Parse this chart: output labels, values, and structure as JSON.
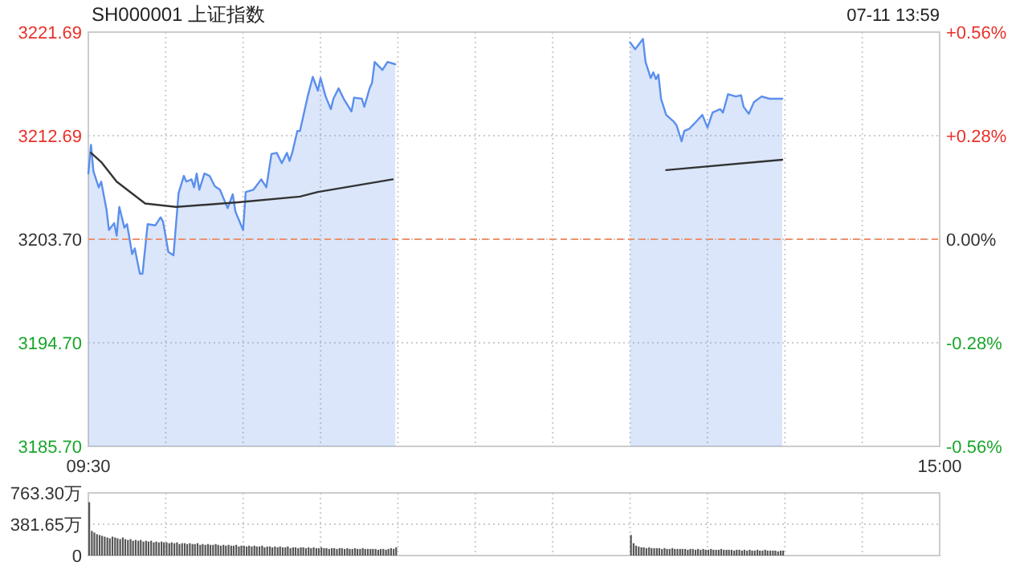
{
  "chart_data": [
    {
      "type": "line",
      "title": "SH000001 上证指数",
      "annotations": [
        "07-11 13:59"
      ],
      "grid": true,
      "xlim": [
        9.5,
        15
      ],
      "xticks": [
        {
          "value": 9.5,
          "label": "09:30"
        },
        {
          "value": 10,
          "label": null
        },
        {
          "value": 10.5,
          "label": null
        },
        {
          "value": 11,
          "label": null
        },
        {
          "value": 11.5,
          "label": null
        },
        {
          "value": 12,
          "label": null
        },
        {
          "value": 12.5,
          "label": null
        },
        {
          "value": 13,
          "label": null
        },
        {
          "value": 13.5,
          "label": null
        },
        {
          "value": 14,
          "label": null
        },
        {
          "value": 14.5,
          "label": null
        },
        {
          "value": 15,
          "label": "15:00"
        }
      ],
      "ylim": [
        3185.7,
        3221.69
      ],
      "yticks": [
        {
          "value": 3185.7,
          "label": "3185.70"
        },
        {
          "value": 3194.7,
          "label": "3194.70"
        },
        {
          "value": 3203.7,
          "label": "3203.70"
        },
        {
          "value": 3212.69,
          "label": "3212.69"
        },
        {
          "value": 3221.69,
          "label": "3221.69"
        }
      ],
      "y2lim": [
        -0.56,
        0.56
      ],
      "y2ticks": [
        {
          "value": -0.56,
          "label": "-0.56%"
        },
        {
          "value": -0.28,
          "label": "-0.28%"
        },
        {
          "value": 0,
          "label": "0.00%"
        },
        {
          "value": 0.28,
          "label": "+0.28%"
        },
        {
          "value": 0.56,
          "label": "+0.56%"
        }
      ],
      "ref_lines": [
        {
          "axis": "y",
          "value": 3203.7,
          "color": "#f0906a",
          "line_style": "dashed"
        }
      ],
      "series": [
        {
          "type": "area",
          "color": "#5b8fec",
          "x": [
            9.5,
            9.517,
            9.533,
            9.567,
            9.583,
            9.617,
            9.633,
            9.667,
            9.683,
            9.7,
            9.733,
            9.75,
            9.783,
            9.8,
            9.833,
            9.85,
            9.883,
            9.933,
            9.967,
            9.983,
            10.017,
            10.05,
            10.083,
            10.117,
            10.133,
            10.167,
            10.183,
            10.2,
            10.217,
            10.25,
            10.283,
            10.317,
            10.35,
            10.4,
            10.433,
            10.45,
            10.5,
            10.517,
            10.567,
            10.617,
            10.65,
            10.683,
            10.717,
            10.75,
            10.783,
            10.8,
            10.817,
            10.85,
            10.867,
            10.917,
            10.95,
            10.983,
            11,
            11.033,
            11.067,
            11.083,
            11.117,
            11.15,
            11.2,
            11.217,
            11.267,
            11.283,
            11.317,
            11.333,
            11.35,
            11.4,
            11.433,
            11.483,
            12.25,
            13,
            13.033,
            13.05,
            13.083,
            13.1,
            13.133,
            13.15,
            13.167,
            13.183,
            13.2,
            13.233,
            13.283,
            13.3,
            13.333,
            13.35,
            13.383,
            13.433,
            13.467,
            13.5,
            13.533,
            13.583,
            13.6,
            13.633,
            13.683,
            13.717,
            13.733,
            13.767,
            13.8,
            13.85,
            13.9,
            13.983
          ],
          "values": [
            3209.4,
            3211.9,
            3209.6,
            3208.2,
            3208.7,
            3206.3,
            3204.5,
            3205.1,
            3204.0,
            3206.5,
            3204.7,
            3205.0,
            3202.4,
            3202.9,
            3200.7,
            3200.7,
            3205.0,
            3204.9,
            3205.6,
            3205.2,
            3202.6,
            3202.3,
            3207.7,
            3209.2,
            3208.7,
            3208.9,
            3208.2,
            3209.4,
            3208.0,
            3209.4,
            3209.2,
            3208.3,
            3208.0,
            3206.4,
            3207.6,
            3206.1,
            3204.5,
            3207.8,
            3208.0,
            3208.9,
            3208.2,
            3211.1,
            3211.2,
            3210.3,
            3211.2,
            3210.5,
            3211.2,
            3213.1,
            3213.1,
            3216.1,
            3217.8,
            3216.6,
            3217.7,
            3216.1,
            3215.0,
            3215.9,
            3216.8,
            3215.9,
            3214.8,
            3216.0,
            3215.9,
            3215.2,
            3216.8,
            3217.3,
            3219.1,
            3218.4,
            3219.1,
            3218.9,
            null,
            3220.8,
            3220.2,
            3220.5,
            3221.1,
            3219.1,
            3217.7,
            3218.2,
            3217.6,
            3218.0,
            3215.9,
            3214.5,
            3213.9,
            3213.6,
            3212.2,
            3213.1,
            3213.3,
            3214.0,
            3214.5,
            3213.4,
            3214.7,
            3215.0,
            3214.7,
            3216.3,
            3216.1,
            3216.2,
            3215.2,
            3214.6,
            3215.6,
            3216.1,
            3215.9,
            3215.9
          ]
        },
        {
          "color": "#333333",
          "x": [
            9.517,
            9.583,
            9.683,
            9.867,
            10.067,
            10.467,
            10.867,
            10.983,
            11.467,
            12.25,
            13.233,
            13.983
          ],
          "values": [
            3211.2,
            3210.4,
            3208.7,
            3206.8,
            3206.5,
            3206.9,
            3207.4,
            3207.8,
            3208.9,
            null,
            3209.7,
            3210.6
          ]
        }
      ]
    },
    {
      "type": "bar",
      "color": "#555555",
      "grid": true,
      "tick_labels": "y",
      "xlim": [
        9.5,
        15
      ],
      "xticks": [
        {
          "value": 9.5,
          "label": null
        },
        {
          "value": 10,
          "label": null
        },
        {
          "value": 10.5,
          "label": null
        },
        {
          "value": 11,
          "label": null
        },
        {
          "value": 11.5,
          "label": null
        },
        {
          "value": 12,
          "label": null
        },
        {
          "value": 12.5,
          "label": null
        },
        {
          "value": 13,
          "label": null
        },
        {
          "value": 13.5,
          "label": null
        },
        {
          "value": 14,
          "label": null
        },
        {
          "value": 14.5,
          "label": null
        },
        {
          "value": 15,
          "label": null
        }
      ],
      "ylim": [
        0,
        763.3
      ],
      "yticks": [
        {
          "value": 0,
          "label": "0"
        },
        {
          "value": 381.65,
          "label": "381.65万"
        },
        {
          "value": 763.3,
          "label": "763.30万"
        }
      ],
      "x": [
        9.5,
        9.517,
        9.533,
        9.55,
        9.567,
        9.583,
        9.6,
        9.617,
        9.633,
        9.65,
        9.667,
        9.683,
        9.7,
        9.717,
        9.733,
        9.75,
        9.767,
        9.783,
        9.8,
        9.817,
        9.833,
        9.85,
        9.867,
        9.883,
        9.9,
        9.917,
        9.933,
        9.95,
        9.967,
        9.983,
        10,
        10.017,
        10.033,
        10.05,
        10.067,
        10.083,
        10.1,
        10.117,
        10.133,
        10.15,
        10.167,
        10.183,
        10.2,
        10.217,
        10.233,
        10.25,
        10.267,
        10.283,
        10.3,
        10.317,
        10.333,
        10.35,
        10.367,
        10.383,
        10.4,
        10.417,
        10.433,
        10.45,
        10.467,
        10.483,
        10.5,
        10.517,
        10.533,
        10.55,
        10.567,
        10.583,
        10.6,
        10.617,
        10.633,
        10.65,
        10.667,
        10.683,
        10.7,
        10.717,
        10.733,
        10.75,
        10.767,
        10.783,
        10.8,
        10.817,
        10.833,
        10.85,
        10.867,
        10.883,
        10.9,
        10.917,
        10.933,
        10.95,
        10.967,
        10.983,
        11,
        11.017,
        11.033,
        11.05,
        11.067,
        11.083,
        11.1,
        11.117,
        11.133,
        11.15,
        11.167,
        11.183,
        11.2,
        11.217,
        11.233,
        11.25,
        11.267,
        11.283,
        11.3,
        11.317,
        11.333,
        11.35,
        11.367,
        11.383,
        11.4,
        11.417,
        11.433,
        11.45,
        11.467,
        11.483,
        13,
        13.017,
        13.033,
        13.05,
        13.067,
        13.083,
        13.1,
        13.117,
        13.133,
        13.15,
        13.167,
        13.183,
        13.2,
        13.217,
        13.233,
        13.25,
        13.267,
        13.283,
        13.3,
        13.317,
        13.333,
        13.35,
        13.367,
        13.383,
        13.4,
        13.417,
        13.433,
        13.45,
        13.467,
        13.483,
        13.5,
        13.517,
        13.533,
        13.55,
        13.567,
        13.583,
        13.6,
        13.617,
        13.633,
        13.65,
        13.667,
        13.683,
        13.7,
        13.717,
        13.733,
        13.75,
        13.767,
        13.783,
        13.8,
        13.817,
        13.833,
        13.85,
        13.867,
        13.883,
        13.9,
        13.917,
        13.933,
        13.95,
        13.967,
        13.983
      ],
      "values": [
        650,
        300,
        280,
        260,
        250,
        240,
        230,
        220,
        210,
        230,
        220,
        210,
        200,
        220,
        200,
        190,
        200,
        180,
        190,
        180,
        190,
        170,
        180,
        170,
        180,
        160,
        170,
        160,
        170,
        160,
        160,
        150,
        160,
        150,
        160,
        140,
        150,
        150,
        140,
        150,
        140,
        140,
        150,
        130,
        140,
        130,
        140,
        130,
        130,
        140,
        130,
        120,
        130,
        120,
        130,
        120,
        120,
        130,
        110,
        120,
        120,
        110,
        120,
        110,
        120,
        110,
        110,
        120,
        100,
        110,
        110,
        100,
        110,
        100,
        110,
        100,
        100,
        110,
        90,
        100,
        100,
        90,
        100,
        100,
        90,
        100,
        90,
        100,
        90,
        90,
        100,
        90,
        90,
        80,
        90,
        90,
        80,
        90,
        90,
        80,
        90,
        80,
        80,
        90,
        80,
        80,
        90,
        80,
        80,
        80,
        80,
        80,
        70,
        80,
        80,
        70,
        80,
        90,
        80,
        100,
        250,
        150,
        120,
        110,
        100,
        100,
        90,
        100,
        90,
        90,
        90,
        90,
        80,
        90,
        80,
        80,
        90,
        80,
        80,
        80,
        80,
        80,
        70,
        80,
        80,
        70,
        80,
        70,
        80,
        70,
        70,
        80,
        70,
        70,
        70,
        80,
        70,
        70,
        70,
        70,
        60,
        70,
        70,
        60,
        70,
        60,
        70,
        60,
        60,
        70,
        60,
        60,
        70,
        60,
        60,
        60,
        60,
        50,
        60,
        60
      ]
    }
  ]
}
